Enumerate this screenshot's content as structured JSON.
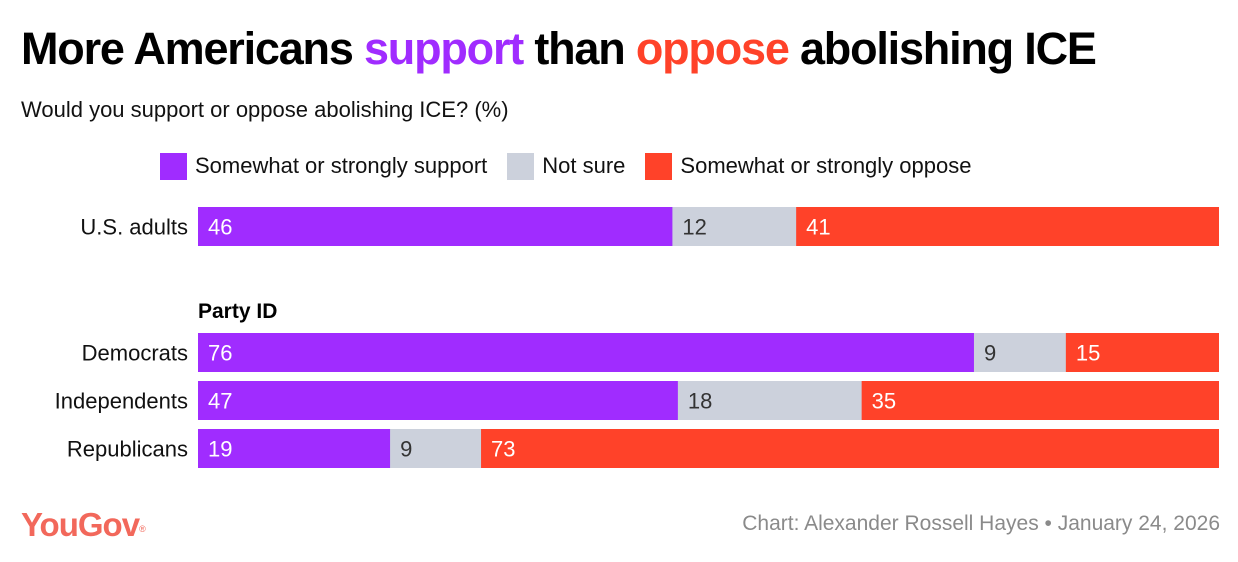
{
  "header": {
    "title_parts": [
      "More Americans ",
      "support",
      " than ",
      "oppose",
      " abolishing ICE"
    ],
    "subtitle": "Would you support or oppose abolishing ICE? (%)"
  },
  "colors": {
    "support": "#a02cff",
    "not_sure": "#ccd1dc",
    "oppose": "#ff4229",
    "label_light": "#ffffff",
    "label_dark": "#333333"
  },
  "chart_data": {
    "type": "bar",
    "orientation": "horizontal",
    "stacked": true,
    "title": "More Americans support than oppose abolishing ICE",
    "subtitle": "Would you support or oppose abolishing ICE? (%)",
    "xlabel": "",
    "ylabel": "",
    "legend_position": "top",
    "grid": false,
    "categories": [
      "U.S. adults",
      "Democrats",
      "Independents",
      "Republicans"
    ],
    "groups": [
      {
        "heading": "",
        "categories": [
          "U.S. adults"
        ]
      },
      {
        "heading": "Party ID",
        "categories": [
          "Democrats",
          "Independents",
          "Republicans"
        ]
      }
    ],
    "series": [
      {
        "name": "Somewhat or strongly support",
        "key": "support",
        "values": [
          46,
          76,
          47,
          19
        ]
      },
      {
        "name": "Not sure",
        "key": "not_sure",
        "values": [
          12,
          9,
          18,
          9
        ]
      },
      {
        "name": "Somewhat or strongly oppose",
        "key": "oppose",
        "values": [
          41,
          15,
          35,
          73
        ]
      }
    ]
  },
  "footer": {
    "logo": "YouGov",
    "logo_mark": "®",
    "credit": "Chart: Alexander Rossell Hayes • January 24, 2026"
  }
}
